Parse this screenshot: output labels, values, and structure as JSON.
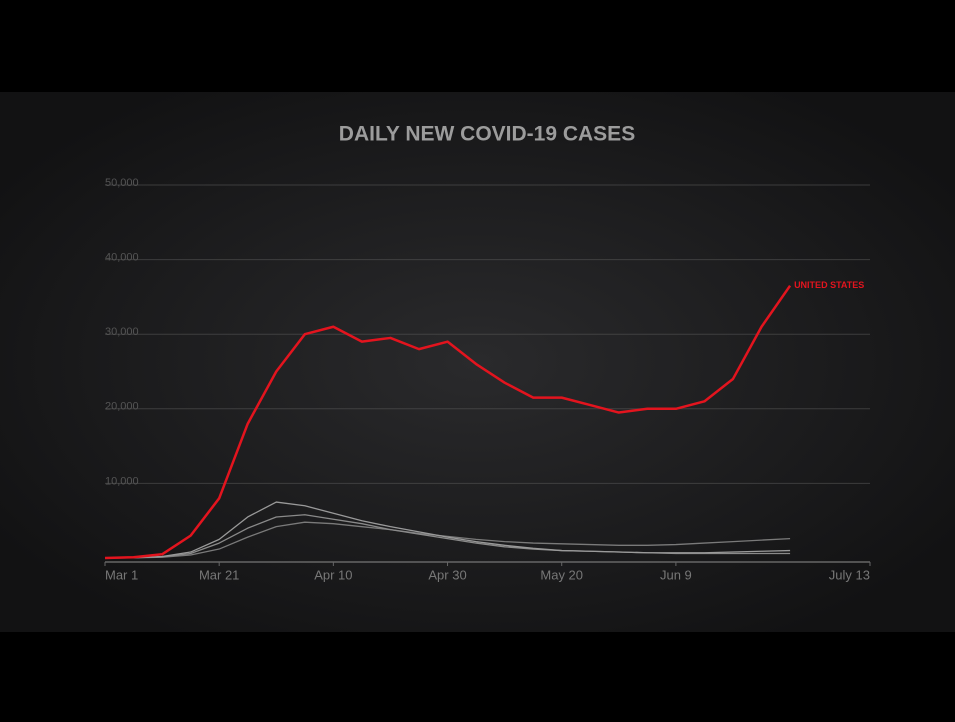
{
  "chart_data": {
    "type": "line",
    "title": "DAILY NEW COVID-19 CASES",
    "x": [
      0,
      5,
      10,
      15,
      20,
      25,
      30,
      35,
      40,
      45,
      50,
      55,
      60,
      65,
      70,
      75,
      80,
      85,
      90,
      95,
      100,
      105,
      110,
      115,
      120
    ],
    "xlim": [
      0,
      134
    ],
    "xticks": [
      {
        "value": 0,
        "label": "Mar 1"
      },
      {
        "value": 20,
        "label": "Mar 21"
      },
      {
        "value": 40,
        "label": "Apr 10"
      },
      {
        "value": 60,
        "label": "Apr 30"
      },
      {
        "value": 80,
        "label": "May 20"
      },
      {
        "value": 100,
        "label": "Jun 9"
      },
      {
        "value": 134,
        "label": "July 13"
      }
    ],
    "ylim": [
      0,
      50000
    ],
    "yticks": [
      {
        "value": 10000,
        "label": "10,000"
      },
      {
        "value": 20000,
        "label": "20,000"
      },
      {
        "value": 30000,
        "label": "30,000"
      },
      {
        "value": 40000,
        "label": "40,000"
      },
      {
        "value": 50000,
        "label": "50,000"
      }
    ],
    "grid": true,
    "series": [
      {
        "name": "UNITED STATES",
        "color": "#e3141e",
        "values": [
          0,
          100,
          500,
          3000,
          8000,
          18000,
          25000,
          30000,
          31000,
          29000,
          29500,
          28000,
          29000,
          26000,
          23500,
          21500,
          21500,
          20500,
          19500,
          20000,
          20000,
          21000,
          24000,
          31000,
          36500
        ]
      },
      {
        "color": "#9a9a9a",
        "values": [
          0,
          50,
          200,
          800,
          2500,
          5500,
          7500,
          7000,
          6000,
          5000,
          4200,
          3500,
          2800,
          2200,
          1700,
          1300,
          1000,
          900,
          800,
          700,
          700,
          700,
          800,
          900,
          1000
        ]
      },
      {
        "color": "#8a8a8a",
        "values": [
          0,
          30,
          150,
          600,
          2000,
          4000,
          5500,
          5800,
          5200,
          4600,
          3800,
          3200,
          2600,
          2000,
          1500,
          1200,
          1000,
          900,
          800,
          700,
          600,
          600,
          600,
          600,
          600
        ]
      },
      {
        "color": "#7a7a7a",
        "values": [
          0,
          20,
          100,
          400,
          1200,
          2800,
          4200,
          4800,
          4600,
          4200,
          3800,
          3300,
          2900,
          2500,
          2200,
          2000,
          1900,
          1800,
          1700,
          1700,
          1800,
          2000,
          2200,
          2400,
          2600
        ]
      }
    ]
  }
}
